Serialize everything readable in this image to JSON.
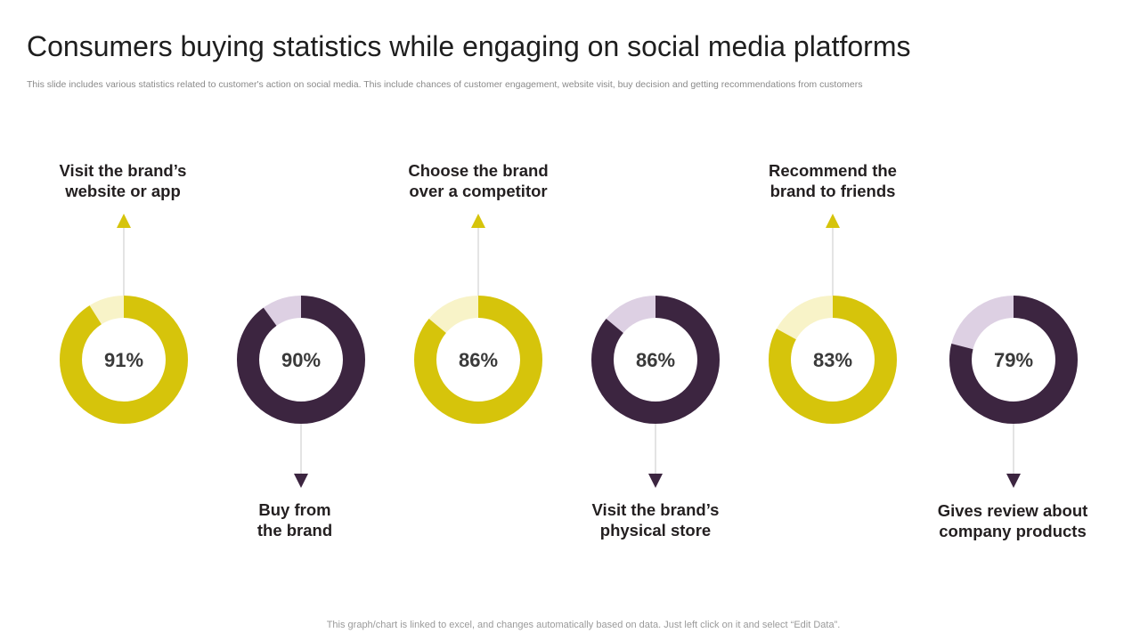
{
  "title": "Consumers buying statistics while engaging on social media platforms",
  "subtitle": "This slide includes various statistics related to customer's action on social media. This include chances of customer engagement, website visit, buy decision and getting recommendations from customers",
  "footer": "This graph/chart is linked to excel,  and changes automatically based on data. Just left click on it and select “Edit Data”.",
  "colors": {
    "yellow": "#d6c40b",
    "yellow_light": "#f8f3c8",
    "purple": "#3c2540",
    "purple_light": "#ddd0e3",
    "line": "#c8c8c8"
  },
  "chart_data": {
    "type": "donut",
    "series": [
      {
        "label": "Visit the brand’s\nwebsite or app",
        "value": 91,
        "value_label": "91%",
        "color": "yellow"
      },
      {
        "label": "Buy from\nthe brand",
        "value": 90,
        "value_label": "90%",
        "color": "purple"
      },
      {
        "label": "Choose the brand\nover a competitor",
        "value": 86,
        "value_label": "86%",
        "color": "yellow"
      },
      {
        "label": "Visit the brand’s\nphysical store",
        "value": 86,
        "value_label": "86%",
        "color": "purple"
      },
      {
        "label": "Recommend the\nbrand to friends",
        "value": 83,
        "value_label": "83%",
        "color": "yellow"
      },
      {
        "label": "Gives review about\ncompany products",
        "value": 79,
        "value_label": "79%",
        "color": "purple"
      }
    ]
  }
}
